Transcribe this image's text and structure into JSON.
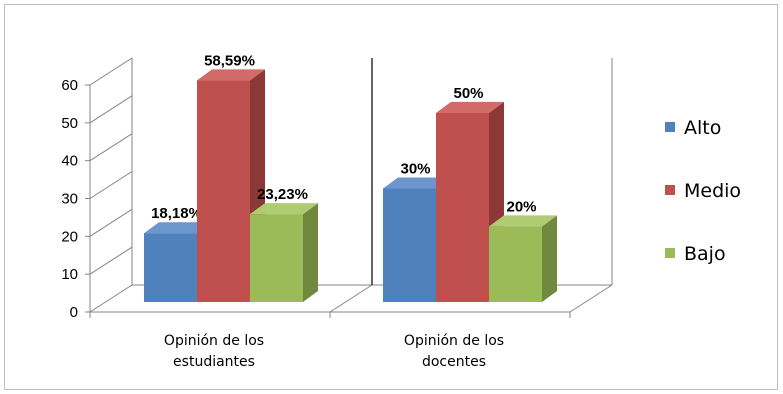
{
  "chart_data": {
    "type": "bar",
    "categories": [
      "Opinión de los estudiantes",
      "Opinión de los docentes"
    ],
    "category_lines": [
      [
        "Opinión de los",
        "estudiantes"
      ],
      [
        "Opinión de los",
        "docentes"
      ]
    ],
    "series": [
      {
        "name": "Alto",
        "values": [
          18.18,
          30
        ],
        "labels": [
          "18,18%",
          "30%"
        ]
      },
      {
        "name": "Medio",
        "values": [
          58.59,
          50
        ],
        "labels": [
          "58,59%",
          "50%"
        ]
      },
      {
        "name": "Bajo",
        "values": [
          23.23,
          20
        ],
        "labels": [
          "23,23%",
          "20%"
        ]
      }
    ],
    "colors": {
      "Alto": {
        "front": "#4f81bd",
        "side": "#385d8a",
        "top": "#6d96cf"
      },
      "Medio": {
        "front": "#c0504d",
        "side": "#8c3836",
        "top": "#d16b68"
      },
      "Bajo": {
        "front": "#9bbb59",
        "side": "#71893f",
        "top": "#b0cc72"
      }
    },
    "ylim": [
      0,
      60
    ],
    "yticks": [
      "0",
      "10",
      "20",
      "30",
      "40",
      "50",
      "60"
    ],
    "grid": false,
    "legend_position": "right",
    "title": "",
    "xlabel": "",
    "ylabel": ""
  }
}
